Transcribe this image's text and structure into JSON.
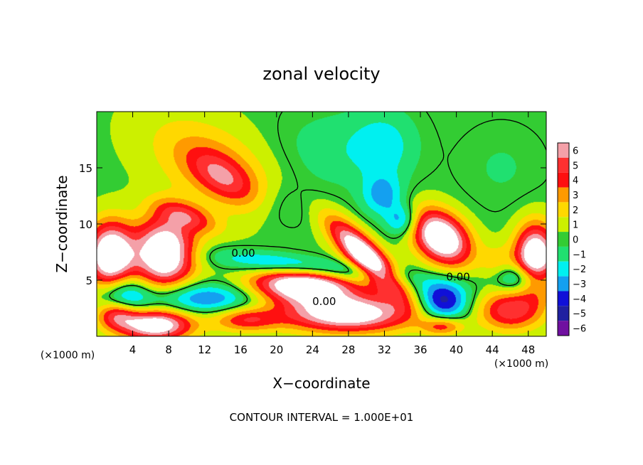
{
  "chart_data": {
    "type": "heatmap",
    "title": "zonal velocity",
    "xlabel": "X−coordinate",
    "ylabel": "Z−coordinate",
    "x_unit_label": "(×1000 m)",
    "x_unit_label_right": "(×1000 m)",
    "xlim": [
      0,
      50
    ],
    "ylim": [
      0,
      20
    ],
    "x_ticks": [
      4,
      8,
      12,
      16,
      20,
      24,
      28,
      32,
      36,
      40,
      44,
      48
    ],
    "y_ticks": [
      5,
      10,
      15
    ],
    "colorbar": {
      "levels": [
        6,
        5,
        4,
        3,
        2,
        1,
        0,
        -1,
        -2,
        -3,
        -4,
        -5,
        -6
      ],
      "labels": [
        "6",
        "5",
        "4",
        "3",
        "2",
        "1",
        "0",
        "−1",
        "−2",
        "−3",
        "−4",
        "−5",
        "−6"
      ],
      "colors": [
        "#f4a0a8",
        "#ff3030",
        "#ff1010",
        "#ff9a00",
        "#ffd800",
        "#ccf000",
        "#33cc33",
        "#20e070",
        "#00f0f0",
        "#14a0f0",
        "#1010d8",
        "#2020a0",
        "#7010a0"
      ]
    },
    "contour_labels": [
      {
        "text": "0.00",
        "x": 16.3,
        "y": 7.4
      },
      {
        "text": "0.00",
        "x": 25.3,
        "y": 3.1
      },
      {
        "text": "0.00",
        "x": 40.2,
        "y": 5.3
      }
    ],
    "annotation": "CONTOUR INTERVAL = 1.000E+01",
    "blobs": [
      {
        "cx": 13,
        "cy": 15.3,
        "rx": 9,
        "ry": 4.2,
        "v": 2.6,
        "rot": -20
      },
      {
        "cx": 14,
        "cy": 14.2,
        "rx": 4.5,
        "ry": 2,
        "v": 3.4,
        "rot": -25
      },
      {
        "cx": 7.5,
        "cy": 7.4,
        "rx": 3.7,
        "ry": 3.4,
        "v": 9,
        "rot": 0
      },
      {
        "cx": 1.5,
        "cy": 7.2,
        "rx": 2.8,
        "ry": 3.2,
        "v": 9,
        "rot": 0
      },
      {
        "cx": 48.8,
        "cy": 7,
        "rx": 2.5,
        "ry": 3.2,
        "v": 9,
        "rot": 0
      },
      {
        "cx": 38.3,
        "cy": 8.8,
        "rx": 3.8,
        "ry": 2.4,
        "v": 9,
        "rot": -25
      },
      {
        "cx": 23,
        "cy": 4.6,
        "rx": 6.5,
        "ry": 1.8,
        "v": 9,
        "rot": 0
      },
      {
        "cx": 30,
        "cy": 7,
        "rx": 5.5,
        "ry": 1.6,
        "v": 9,
        "rot": -38
      },
      {
        "cx": 28,
        "cy": 2,
        "rx": 8,
        "ry": 1.8,
        "v": 8,
        "rot": 0
      },
      {
        "cx": 38.5,
        "cy": 0.9,
        "rx": 2.5,
        "ry": 0.9,
        "v": 4,
        "rot": 0
      },
      {
        "cx": 2.3,
        "cy": 2,
        "rx": 2.5,
        "ry": 1.4,
        "v": 5,
        "rot": 0
      },
      {
        "cx": 6.5,
        "cy": 1,
        "rx": 4.5,
        "ry": 1.5,
        "v": 8,
        "rot": 0
      },
      {
        "cx": 46,
        "cy": 2.3,
        "rx": 4,
        "ry": 2,
        "v": 5,
        "rot": 0
      },
      {
        "cx": 16.5,
        "cy": 1.5,
        "rx": 4,
        "ry": 1.2,
        "v": 4,
        "rot": 0
      },
      {
        "cx": 26,
        "cy": 16.5,
        "rx": 7,
        "ry": 4,
        "v": -1.3,
        "rot": 0
      },
      {
        "cx": 32,
        "cy": 17,
        "rx": 4,
        "ry": 3.5,
        "v": -2,
        "rot": 0
      },
      {
        "cx": 31.8,
        "cy": 12.5,
        "rx": 2.5,
        "ry": 2,
        "v": -3,
        "rot": 0
      },
      {
        "cx": 24,
        "cy": 6.1,
        "rx": 11,
        "ry": 1.1,
        "v": -4.5,
        "rot": -5
      },
      {
        "cx": 12,
        "cy": 3.4,
        "rx": 7.5,
        "ry": 1.5,
        "v": -4,
        "rot": 0
      },
      {
        "cx": 3,
        "cy": 3.5,
        "rx": 3,
        "ry": 2,
        "v": -4,
        "rot": 0
      },
      {
        "cx": 38.5,
        "cy": 3.1,
        "rx": 3.2,
        "ry": 2,
        "v": -5.5,
        "rot": 0
      },
      {
        "cx": 47,
        "cy": 5.2,
        "rx": 3.5,
        "ry": 1.4,
        "v": -4,
        "rot": 0
      },
      {
        "cx": 34,
        "cy": 10.3,
        "rx": 2,
        "ry": 1.5,
        "v": -3.5,
        "rot": 0
      },
      {
        "cx": 21,
        "cy": 11.5,
        "rx": 4,
        "ry": 2.5,
        "v": -1.2,
        "rot": 0
      },
      {
        "cx": 45,
        "cy": 15,
        "rx": 5,
        "ry": 4,
        "v": -0.8,
        "rot": 0
      },
      {
        "cx": 10,
        "cy": 10.7,
        "rx": 4,
        "ry": 1.3,
        "v": 3.5,
        "rot": -15
      },
      {
        "cx": 44.5,
        "cy": 6.2,
        "rx": 2,
        "ry": 2,
        "v": 2,
        "rot": 0
      }
    ]
  }
}
